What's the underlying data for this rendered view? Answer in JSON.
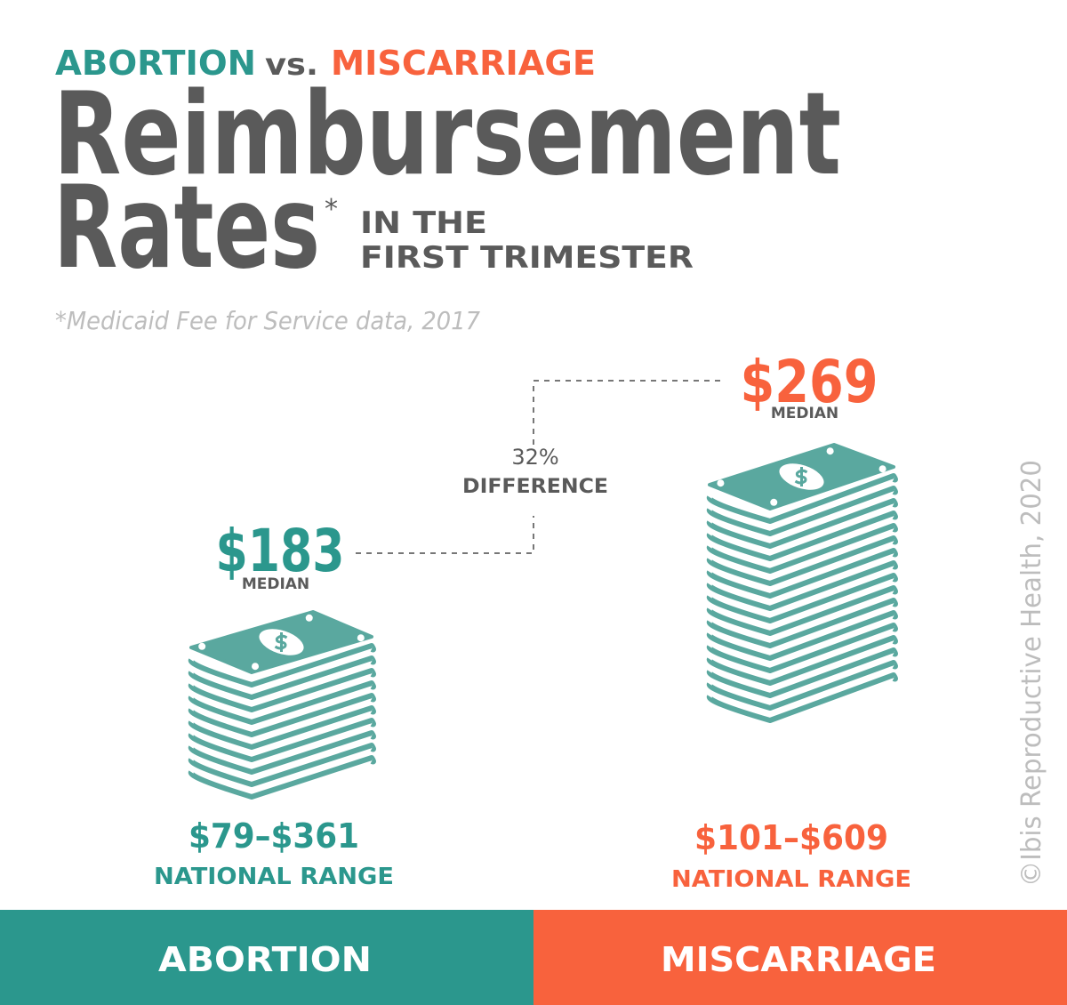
{
  "header": {
    "kicker_left": "ABORTION",
    "kicker_mid": "vs.",
    "kicker_right": "MISCARRIAGE",
    "title_line1": "Reimbursement",
    "title_line2": "Rates",
    "asterisk": "*",
    "subtitle_line1": "IN THE",
    "subtitle_line2": "FIRST TRIMESTER",
    "note": "*Medicaid Fee for Service data, 2017"
  },
  "comparison": {
    "difference": "32%",
    "difference_label": "DIFFERENCE"
  },
  "groups": [
    {
      "name": "ABORTION",
      "median": "$183",
      "median_label": "MEDIAN",
      "range": "$79–$361",
      "range_label": "NATIONAL RANGE"
    },
    {
      "name": "MISCARRIAGE",
      "median": "$269",
      "median_label": "MEDIAN",
      "range": "$101–$609",
      "range_label": "NATIONAL RANGE"
    }
  ],
  "credit": "©Ibis Reproductive Health, 2020"
}
